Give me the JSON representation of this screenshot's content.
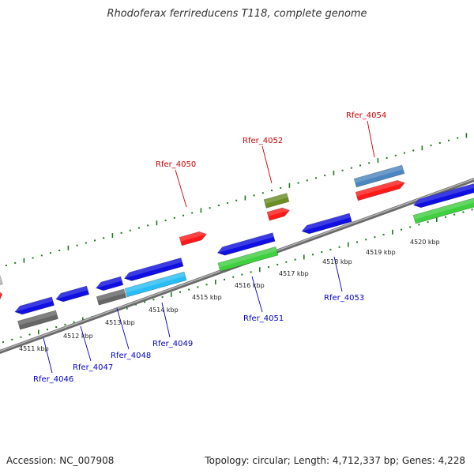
{
  "title": "Rhodoferax ferrireducens T118, complete genome",
  "footer": {
    "accession": "Accession: NC_007908",
    "stats": "Topology: circular; Length: 4,712,337 bp; Genes: 4,228"
  },
  "colors": {
    "backbone": "#8a8a8a",
    "tick": "#1a7a1a",
    "gene_red": "#ff1a1a",
    "gene_blue": "#1010e0",
    "gene_green": "#3fcf3f",
    "gene_grey": "#6e6e6e",
    "gene_cyan": "#29bdf5",
    "gene_steel": "#4a86bf",
    "gene_olive": "#6b8e23",
    "label_red": "#cc0000",
    "label_blue": "#0000cc"
  },
  "scale": {
    "unit": "kbp",
    "labels": [
      "4511 kbp",
      "4512 kbp",
      "4513 kbp",
      "4514 kbp",
      "4515 kbp",
      "4516 kbp",
      "4517 kbp",
      "4518 kbp",
      "4519 kbp",
      "4520 kbp"
    ]
  },
  "gene_labels": {
    "top": [
      "Rfer_4050",
      "Rfer_4052",
      "Rfer_4054"
    ],
    "bottom": [
      "Rfer_4046",
      "Rfer_4047",
      "Rfer_4048",
      "Rfer_4049",
      "Rfer_4051",
      "Rfer_4053"
    ]
  }
}
